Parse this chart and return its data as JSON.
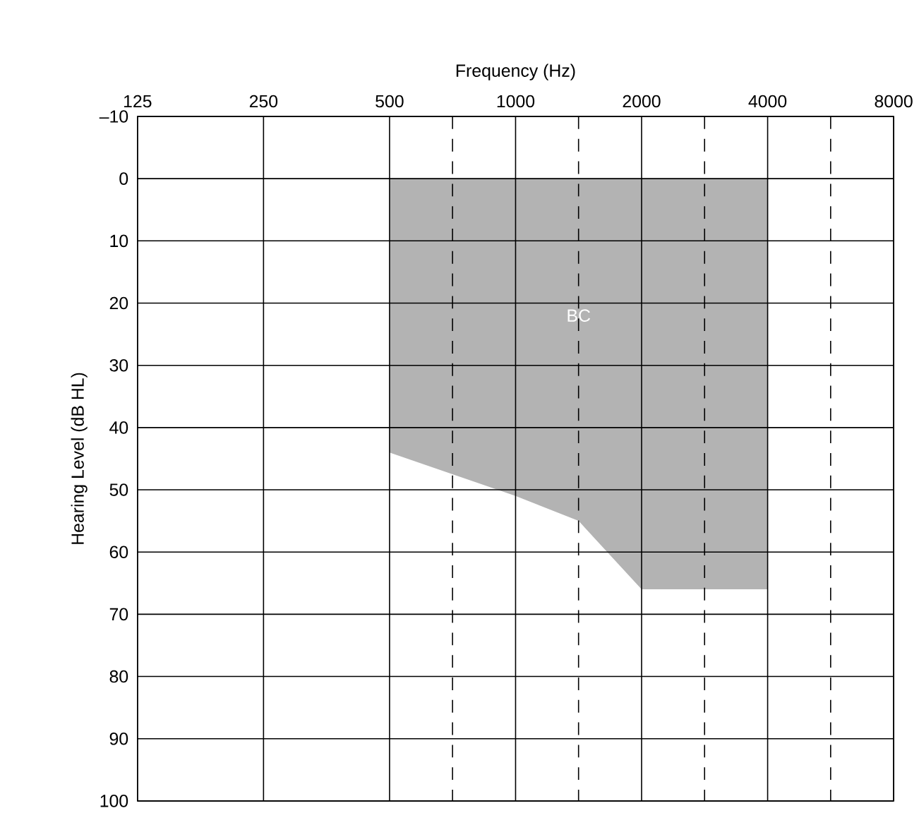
{
  "chart_data": {
    "type": "area",
    "xlabel": "Frequency (Hz)",
    "ylabel": "Hearing Level (dB HL)",
    "log": "x",
    "xlim": [
      125,
      8000
    ],
    "ylim": [
      100,
      -10
    ],
    "xticks": [
      125,
      250,
      500,
      1000,
      2000,
      4000,
      8000,
      {
        "value": 707,
        "label": null
      },
      {
        "value": 1414,
        "label": null
      },
      {
        "value": 2828,
        "label": null
      },
      {
        "value": 5657,
        "label": null
      }
    ],
    "yticks": [
      {
        "value": -10,
        "label": "–10"
      },
      0,
      10,
      20,
      30,
      40,
      50,
      60,
      70,
      80,
      90,
      100
    ],
    "grid": true,
    "series": [
      {
        "name": "BC",
        "color": "#b3b3b3",
        "x": [
          500,
          1000,
          1414,
          2000,
          4000
        ],
        "values": [
          44,
          51,
          55,
          66,
          66
        ]
      }
    ]
  }
}
